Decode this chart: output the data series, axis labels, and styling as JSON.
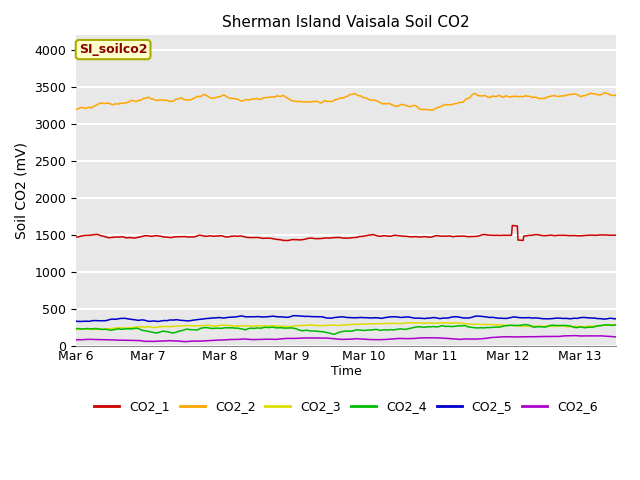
{
  "title": "Sherman Island Vaisala Soil CO2",
  "ylabel": "Soil CO2 (mV)",
  "xlabel": "Time",
  "annotation_label": "SI_soilco2",
  "annotation_color": "#8B0000",
  "annotation_bg": "#FFFFCC",
  "annotation_edge": "#AAAA00",
  "xlim_days": [
    0.0,
    7.5
  ],
  "ylim": [
    0,
    4200
  ],
  "yticks": [
    0,
    500,
    1000,
    1500,
    2000,
    2500,
    3000,
    3500,
    4000
  ],
  "xtick_labels": [
    "Mar 6",
    "Mar 7",
    "Mar 8",
    "Mar 9",
    "Mar 10",
    "Mar 11",
    "Mar 12",
    "Mar 13"
  ],
  "xtick_positions": [
    0,
    1,
    2,
    3,
    4,
    5,
    6,
    7
  ],
  "bg_color": "#E8E8E8",
  "grid_color": "#FFFFFF",
  "legend_colors": {
    "CO2_1": "#CC0000",
    "CO2_2": "#FFA500",
    "CO2_3": "#DDDD00",
    "CO2_4": "#00BB00",
    "CO2_5": "#0000CC",
    "CO2_6": "#AA00CC"
  }
}
